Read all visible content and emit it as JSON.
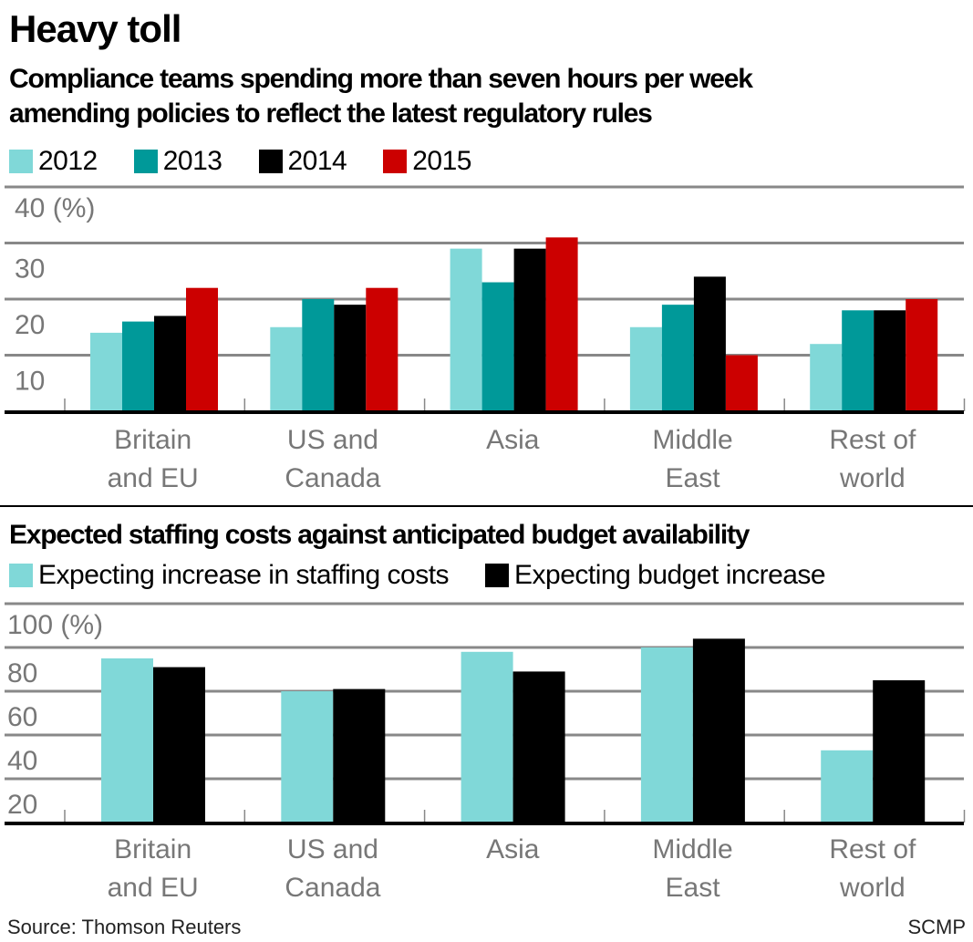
{
  "title": "Heavy toll",
  "source": "Source: Thomson Reuters",
  "credit": "SCMP",
  "chart_data": [
    {
      "type": "bar",
      "title": "Compliance teams spending more than seven hours per week amending policies to reflect the latest regulatory rules",
      "categories": [
        [
          "Britain",
          "and EU"
        ],
        [
          "US and",
          "Canada"
        ],
        [
          "Asia"
        ],
        [
          "Middle",
          "East"
        ],
        [
          "Rest of",
          "world"
        ]
      ],
      "series": [
        {
          "name": "2012",
          "color": "#80d8d8",
          "values": [
            14,
            15,
            29,
            15,
            12
          ]
        },
        {
          "name": "2013",
          "color": "#009999",
          "values": [
            16,
            20,
            23,
            19,
            18
          ]
        },
        {
          "name": "2014",
          "color": "#000000",
          "values": [
            17,
            19,
            29,
            24,
            18
          ]
        },
        {
          "name": "2015",
          "color": "#cc0000",
          "values": [
            22,
            22,
            31,
            10,
            20
          ]
        }
      ],
      "ylim": [
        0,
        40
      ],
      "yticks": [
        "10",
        "20",
        "30",
        "40 (%)"
      ],
      "ytick_values": [
        10,
        20,
        30,
        40
      ],
      "grid": true,
      "legend": "top-left"
    },
    {
      "type": "bar",
      "title": "Expected staffing costs against anticipated budget availability",
      "categories": [
        [
          "Britain",
          "and EU"
        ],
        [
          "US and",
          "Canada"
        ],
        [
          "Asia"
        ],
        [
          "Middle",
          "East"
        ],
        [
          "Rest of",
          "world"
        ]
      ],
      "series": [
        {
          "name": "Expecting increase in staffing costs",
          "color": "#80d8d8",
          "values": [
            75,
            60,
            78,
            80,
            33
          ]
        },
        {
          "name": "Expecting budget increase",
          "color": "#000000",
          "values": [
            71,
            61,
            69,
            84,
            65
          ]
        }
      ],
      "ylim": [
        0,
        100
      ],
      "yticks": [
        "20",
        "40",
        "60",
        "80",
        "100 (%)"
      ],
      "ytick_values": [
        20,
        40,
        60,
        80,
        100
      ],
      "grid": true,
      "legend": "top-left"
    }
  ]
}
